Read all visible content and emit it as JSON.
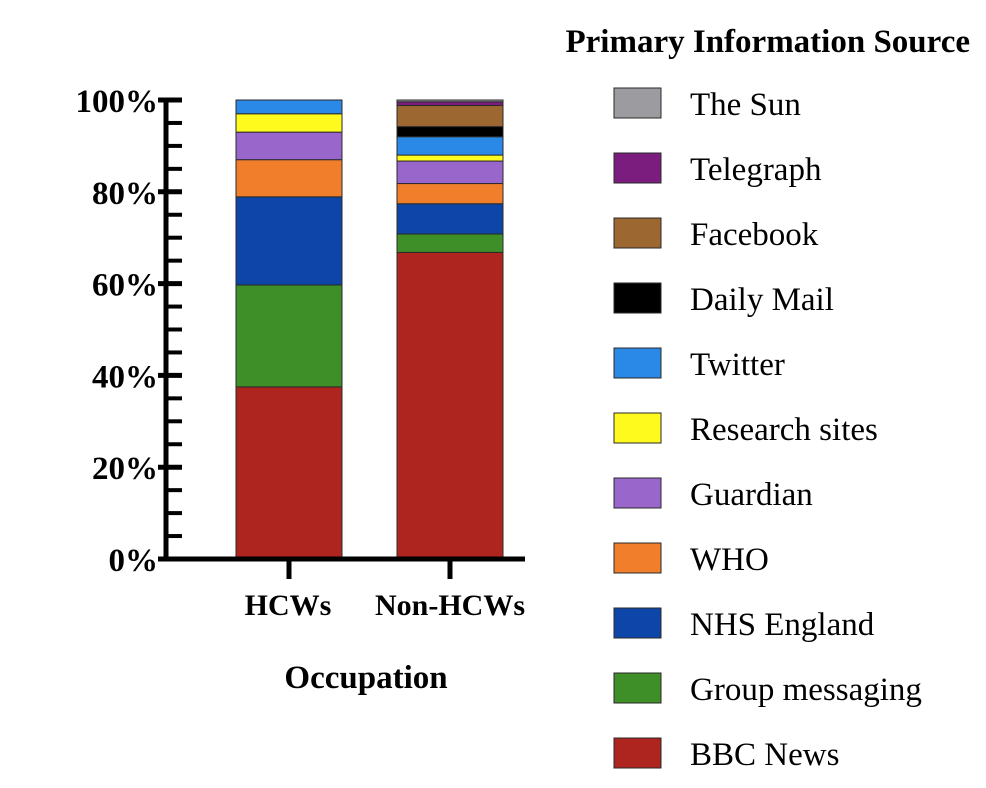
{
  "chart_data": {
    "type": "bar",
    "stacked": true,
    "percent": true,
    "xlabel": "Occupation",
    "ylabel": "",
    "ylim": [
      0,
      100
    ],
    "y_ticks": [
      "0%",
      "20%",
      "40%",
      "60%",
      "80%",
      "100%"
    ],
    "categories": [
      "HCWs",
      "Non-HCWs"
    ],
    "legend_title": "Primary Information Source",
    "legend_position": "right",
    "series": [
      {
        "name": "BBC News",
        "color": "#AE241E",
        "values": [
          37.5,
          66.8
        ]
      },
      {
        "name": "Group messaging",
        "color": "#3E8F27",
        "values": [
          22.2,
          4.0
        ]
      },
      {
        "name": "NHS England",
        "color": "#0D46A8",
        "values": [
          19.2,
          6.6
        ]
      },
      {
        "name": "WHO",
        "color": "#F07E2A",
        "values": [
          8.1,
          4.4
        ]
      },
      {
        "name": "Guardian",
        "color": "#9966CC",
        "values": [
          6.0,
          4.9
        ]
      },
      {
        "name": "Research sites",
        "color": "#FFFA1E",
        "values": [
          4.0,
          1.3
        ]
      },
      {
        "name": "Twitter",
        "color": "#2A88E6",
        "values": [
          3.0,
          4.0
        ]
      },
      {
        "name": "Daily Mail",
        "color": "#000000",
        "values": [
          0,
          2.2
        ]
      },
      {
        "name": "Facebook",
        "color": "#9C6731",
        "values": [
          0,
          4.6
        ]
      },
      {
        "name": "Telegraph",
        "color": "#7A1D7F",
        "values": [
          0,
          0.8
        ]
      },
      {
        "name": "The Sun",
        "color": "#9C9CA0",
        "values": [
          0,
          0.4
        ]
      }
    ]
  }
}
